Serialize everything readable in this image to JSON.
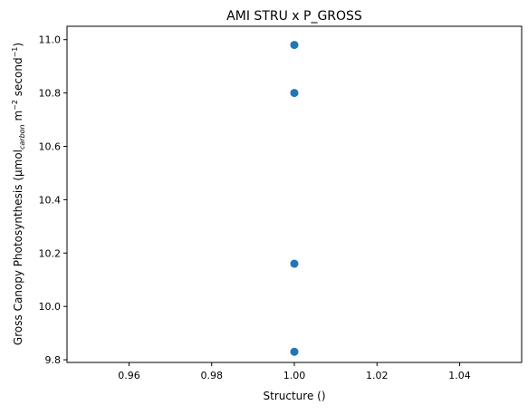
{
  "chart_data": {
    "type": "scatter",
    "title": "AMI STRU x P_GROSS",
    "xlabel": "Structure ()",
    "ylabel": {
      "main": "Gross Canopy Photosynthesis (μmol",
      "sub": "carbon",
      "rest": " m",
      "exp1": "−2",
      "rest2": " second",
      "exp2": "−1",
      "close": ")"
    },
    "xlim": [
      0.945,
      1.055
    ],
    "ylim": [
      9.79,
      11.05
    ],
    "xticks": [
      0.96,
      0.98,
      1.0,
      1.02,
      1.04
    ],
    "xtick_labels": [
      "0.96",
      "0.98",
      "1.00",
      "1.02",
      "1.04"
    ],
    "yticks": [
      9.8,
      10.0,
      10.2,
      10.4,
      10.6,
      10.8,
      11.0
    ],
    "ytick_labels": [
      "9.8",
      "10.0",
      "10.2",
      "10.4",
      "10.6",
      "10.8",
      "11.0"
    ],
    "series": [
      {
        "color": "#1f77b4",
        "points": [
          {
            "x": 1.0,
            "y": 10.98
          },
          {
            "x": 1.0,
            "y": 10.8
          },
          {
            "x": 1.0,
            "y": 10.16
          },
          {
            "x": 1.0,
            "y": 9.83
          }
        ]
      }
    ],
    "grid": false
  }
}
